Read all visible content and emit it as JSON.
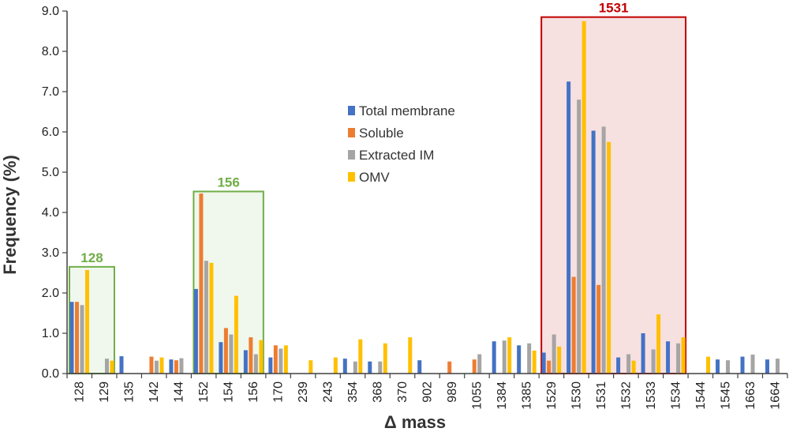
{
  "chart_data": {
    "type": "bar",
    "title": "",
    "xlabel": "Δ mass",
    "ylabel": "Frequency (%)",
    "ylim": [
      0,
      9
    ],
    "yticks": [
      "0.0",
      "1.0",
      "2.0",
      "3.0",
      "4.0",
      "5.0",
      "6.0",
      "7.0",
      "8.0",
      "9.0"
    ],
    "grid": false,
    "legend_position": "center-right",
    "categories": [
      "128",
      "129",
      "135",
      "142",
      "144",
      "152",
      "154",
      "156",
      "170",
      "239",
      "243",
      "354",
      "368",
      "370",
      "902",
      "989",
      "1055",
      "1384",
      "1385",
      "1529",
      "1530",
      "1531",
      "1532",
      "1533",
      "1534",
      "1544",
      "1545",
      "1663",
      "1664"
    ],
    "series": [
      {
        "name": "Total membrane",
        "color": "#4472C4",
        "values": [
          1.78,
          0,
          0.43,
          0,
          0.35,
          2.1,
          0.78,
          0.58,
          0.4,
          0,
          0,
          0.37,
          0.3,
          0,
          0.33,
          0,
          0,
          0.8,
          0.7,
          0.52,
          7.25,
          6.03,
          0.4,
          1.0,
          0.8,
          0,
          0.35,
          0.42,
          0.35
        ]
      },
      {
        "name": "Soluble",
        "color": "#ED7D31",
        "values": [
          1.78,
          0,
          0,
          0.42,
          0.33,
          4.47,
          1.13,
          0.9,
          0.7,
          0,
          0,
          0,
          0,
          0,
          0,
          0.3,
          0.35,
          0,
          0,
          0.32,
          2.4,
          2.2,
          0,
          0,
          0,
          0,
          0,
          0,
          0
        ]
      },
      {
        "name": "Extracted IM",
        "color": "#A5A5A5",
        "values": [
          1.7,
          0.37,
          0,
          0.32,
          0.38,
          2.8,
          0.97,
          0.48,
          0.62,
          0,
          0,
          0.3,
          0.3,
          0,
          0,
          0,
          0.48,
          0.82,
          0.75,
          0.97,
          6.8,
          6.13,
          0.48,
          0.6,
          0.75,
          0,
          0.33,
          0.47,
          0.37
        ]
      },
      {
        "name": "OMV",
        "color": "#FFC000",
        "values": [
          2.57,
          0.32,
          0,
          0.4,
          0,
          2.75,
          1.93,
          0.83,
          0.7,
          0.33,
          0.4,
          0.85,
          0.75,
          0.9,
          0,
          0,
          0,
          0.9,
          0.57,
          0.67,
          8.75,
          5.75,
          0.32,
          1.47,
          0.9,
          0.42,
          0,
          0,
          0
        ]
      }
    ],
    "annotations": [
      {
        "label": "128",
        "from": "128",
        "to": "129",
        "color": "#70AD47"
      },
      {
        "label": "156",
        "from": "152",
        "to": "156",
        "color": "#70AD47"
      },
      {
        "label": "1531",
        "from": "1529",
        "to": "1534",
        "color": "#C00000"
      }
    ]
  }
}
